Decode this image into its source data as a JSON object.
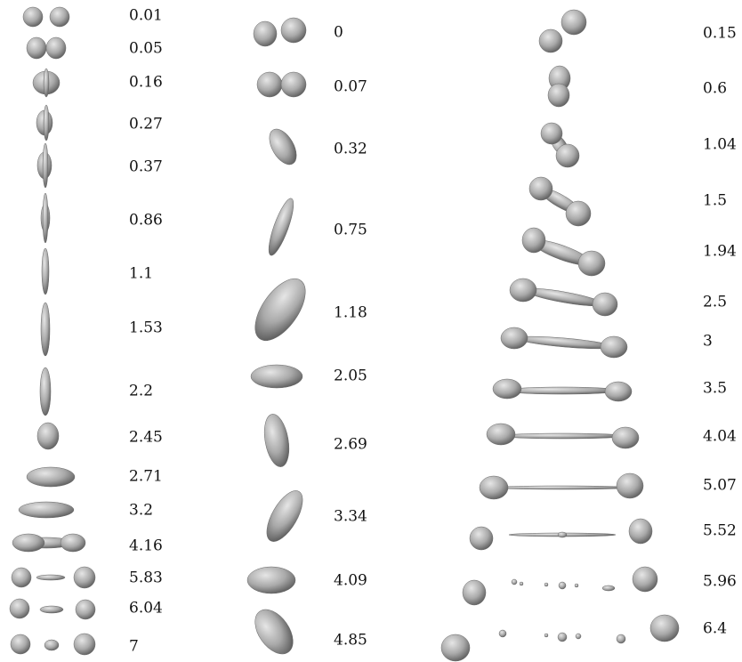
{
  "columns": [
    {
      "frames": [
        {
          "label": "0.01"
        },
        {
          "label": "0.05"
        },
        {
          "label": "0.16"
        },
        {
          "label": "0.27"
        },
        {
          "label": "0.37"
        },
        {
          "label": "0.86"
        },
        {
          "label": "1.1"
        },
        {
          "label": "1.53"
        },
        {
          "label": "2.2"
        },
        {
          "label": "2.45"
        },
        {
          "label": "2.71"
        },
        {
          "label": "3.2"
        },
        {
          "label": "4.16"
        },
        {
          "label": "5.83"
        },
        {
          "label": "6.04"
        },
        {
          "label": "7"
        }
      ]
    },
    {
      "frames": [
        {
          "label": "0"
        },
        {
          "label": "0.07"
        },
        {
          "label": "0.32"
        },
        {
          "label": "0.75"
        },
        {
          "label": "1.18"
        },
        {
          "label": "2.05"
        },
        {
          "label": "2.69"
        },
        {
          "label": "3.34"
        },
        {
          "label": "4.09"
        },
        {
          "label": "4.85"
        }
      ]
    },
    {
      "frames": [
        {
          "label": "0.15"
        },
        {
          "label": "0.6"
        },
        {
          "label": "1.04"
        },
        {
          "label": "1.5"
        },
        {
          "label": "1.94"
        },
        {
          "label": "2.5"
        },
        {
          "label": "3"
        },
        {
          "label": "3.5"
        },
        {
          "label": "4.04"
        },
        {
          "label": "5.07"
        },
        {
          "label": "5.52"
        },
        {
          "label": "5.96"
        },
        {
          "label": "6.4"
        }
      ]
    }
  ]
}
